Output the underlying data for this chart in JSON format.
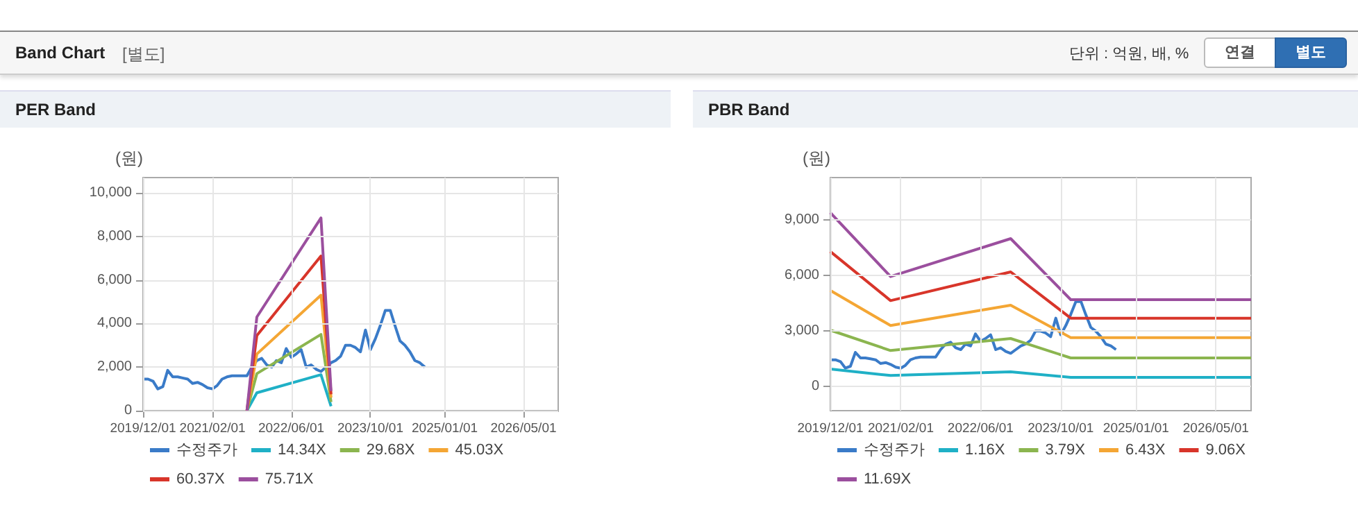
{
  "chart_data": [
    {
      "type": "other",
      "title": "Band Chart",
      "subtitle": "[별도]",
      "annotations": [
        "단위 : 억원, 배, %",
        "연결",
        "별도"
      ]
    },
    {
      "type": "line",
      "title": "PER Band",
      "ylabel": "(원)",
      "xlim": [
        "2019-12-01",
        "2026-12-01"
      ],
      "xticks": [
        {
          "value": "2019-12-01",
          "label": "2019/12/01"
        },
        {
          "value": "2021-02-01",
          "label": "2021/02/01"
        },
        {
          "value": "2022-06-01",
          "label": "2022/06/01"
        },
        {
          "value": "2023-10-01",
          "label": "2023/10/01"
        },
        {
          "value": "2025-01-01",
          "label": "2025/01/01"
        },
        {
          "value": "2026-05-01",
          "label": "2026/05/01"
        }
      ],
      "ylim": [
        0,
        10700
      ],
      "yticks": [
        0,
        {
          "value": 2000,
          "label": "2,000"
        },
        {
          "value": 4000,
          "label": "4,000"
        },
        {
          "value": 6000,
          "label": "6,000"
        },
        {
          "value": 8000,
          "label": "8,000"
        },
        {
          "value": 10000,
          "label": "10,000"
        }
      ],
      "grid": true,
      "legend": "bottom",
      "marker": "none",
      "line_style": "solid",
      "series": [
        {
          "name": "수정주가",
          "color": "#3a7bc8",
          "x": [
            "2019-12-01",
            "2020-01-01",
            "2020-02-01",
            "2020-03-01",
            "2020-04-01",
            "2020-05-01",
            "2020-06-01",
            "2020-07-01",
            "2020-08-01",
            "2020-09-01",
            "2020-10-01",
            "2020-11-01",
            "2020-12-01",
            "2021-01-01",
            "2021-02-01",
            "2021-03-01",
            "2021-04-01",
            "2021-05-01",
            "2021-06-01",
            "2021-07-01",
            "2021-08-01",
            "2021-09-01",
            "2021-10-01",
            "2021-11-01",
            "2021-12-01",
            "2022-01-01",
            "2022-02-01",
            "2022-03-01",
            "2022-04-01",
            "2022-05-01",
            "2022-06-01",
            "2022-07-01",
            "2022-08-01",
            "2022-09-01",
            "2022-10-01",
            "2022-11-01",
            "2022-12-01",
            "2023-01-01",
            "2023-02-01",
            "2023-03-01",
            "2023-04-01",
            "2023-05-01",
            "2023-06-01",
            "2023-07-01",
            "2023-08-01",
            "2023-09-01",
            "2023-10-01",
            "2023-11-01",
            "2023-12-01",
            "2024-01-01",
            "2024-02-01",
            "2024-03-01",
            "2024-04-01",
            "2024-05-01",
            "2024-06-01",
            "2024-07-01",
            "2024-08-01",
            "2024-09-01"
          ],
          "values": [
            1450,
            1450,
            1350,
            1000,
            1100,
            1850,
            1550,
            1550,
            1500,
            1450,
            1250,
            1300,
            1200,
            1050,
            1000,
            1150,
            1450,
            1550,
            1600,
            1600,
            1600,
            1600,
            2000,
            2300,
            2400,
            2100,
            2000,
            2300,
            2200,
            2850,
            2450,
            2600,
            2800,
            2000,
            2100,
            1900,
            1800,
            2000,
            2200,
            2300,
            2500,
            3000,
            3000,
            2900,
            2700,
            3700,
            2800,
            3300,
            3900,
            4600,
            4600,
            3900,
            3200,
            3000,
            2700,
            2300,
            2200,
            2000
          ]
        },
        {
          "name": "14.34X",
          "color": "#1fb0c6",
          "x": [
            "2021-09-01",
            "2021-11-01",
            "2022-12-01",
            "2023-02-01"
          ],
          "values": [
            0,
            820,
            1650,
            200
          ]
        },
        {
          "name": "29.68X",
          "color": "#8bb54f",
          "x": [
            "2021-09-01",
            "2021-11-01",
            "2022-12-01",
            "2023-02-01"
          ],
          "values": [
            0,
            1700,
            3500,
            400
          ]
        },
        {
          "name": "45.03X",
          "color": "#f4a634",
          "x": [
            "2021-09-01",
            "2021-11-01",
            "2022-12-01",
            "2023-02-01"
          ],
          "values": [
            0,
            2600,
            5300,
            600
          ]
        },
        {
          "name": "60.37X",
          "color": "#d8352a",
          "x": [
            "2021-09-01",
            "2021-11-01",
            "2022-12-01",
            "2023-02-01"
          ],
          "values": [
            0,
            3450,
            7100,
            750
          ]
        },
        {
          "name": "75.71X",
          "color": "#9b4f9e",
          "x": [
            "2021-09-01",
            "2021-11-01",
            "2022-12-01",
            "2023-02-01"
          ],
          "values": [
            0,
            4300,
            8850,
            900
          ]
        }
      ]
    },
    {
      "type": "line",
      "title": "PBR Band",
      "ylabel": "(원)",
      "xlim": [
        "2019-12-01",
        "2026-12-01"
      ],
      "xticks": [
        {
          "value": "2019-12-01",
          "label": "2019/12/01"
        },
        {
          "value": "2021-02-01",
          "label": "2021/02/01"
        },
        {
          "value": "2022-06-01",
          "label": "2022/06/01"
        },
        {
          "value": "2023-10-01",
          "label": "2023/10/01"
        },
        {
          "value": "2025-01-01",
          "label": "2025/01/01"
        },
        {
          "value": "2026-05-01",
          "label": "2026/05/01"
        }
      ],
      "ylim": [
        -1300,
        11300
      ],
      "yticks": [
        0,
        {
          "value": 3000,
          "label": "3,000"
        },
        {
          "value": 6000,
          "label": "6,000"
        },
        {
          "value": 9000,
          "label": "9,000"
        }
      ],
      "grid": true,
      "legend": "bottom",
      "marker": "none",
      "line_style": "solid",
      "series": [
        {
          "name": "수정주가",
          "color": "#3a7bc8",
          "x": [
            "2019-12-01",
            "2020-01-01",
            "2020-02-01",
            "2020-03-01",
            "2020-04-01",
            "2020-05-01",
            "2020-06-01",
            "2020-07-01",
            "2020-08-01",
            "2020-09-01",
            "2020-10-01",
            "2020-11-01",
            "2020-12-01",
            "2021-01-01",
            "2021-02-01",
            "2021-03-01",
            "2021-04-01",
            "2021-05-01",
            "2021-06-01",
            "2021-07-01",
            "2021-08-01",
            "2021-09-01",
            "2021-10-01",
            "2021-11-01",
            "2021-12-01",
            "2022-01-01",
            "2022-02-01",
            "2022-03-01",
            "2022-04-01",
            "2022-05-01",
            "2022-06-01",
            "2022-07-01",
            "2022-08-01",
            "2022-09-01",
            "2022-10-01",
            "2022-11-01",
            "2022-12-01",
            "2023-01-01",
            "2023-02-01",
            "2023-03-01",
            "2023-04-01",
            "2023-05-01",
            "2023-06-01",
            "2023-07-01",
            "2023-08-01",
            "2023-09-01",
            "2023-10-01",
            "2023-11-01",
            "2023-12-01",
            "2024-01-01",
            "2024-02-01",
            "2024-03-01",
            "2024-04-01",
            "2024-05-01",
            "2024-06-01",
            "2024-07-01",
            "2024-08-01",
            "2024-09-01"
          ],
          "values": [
            1450,
            1450,
            1350,
            1000,
            1100,
            1850,
            1550,
            1550,
            1500,
            1450,
            1250,
            1300,
            1200,
            1050,
            1000,
            1150,
            1450,
            1550,
            1600,
            1600,
            1600,
            1600,
            2000,
            2300,
            2400,
            2100,
            2000,
            2300,
            2200,
            2850,
            2450,
            2600,
            2800,
            2000,
            2100,
            1900,
            1800,
            2000,
            2200,
            2300,
            2500,
            3000,
            3000,
            2900,
            2700,
            3700,
            2800,
            3300,
            3900,
            4600,
            4600,
            3900,
            3200,
            3000,
            2700,
            2300,
            2200,
            2000
          ]
        },
        {
          "name": "1.16X",
          "color": "#1fb0c6",
          "x": [
            "2019-12-01",
            "2020-12-01",
            "2022-12-01",
            "2023-12-01",
            "2026-12-01"
          ],
          "values": [
            950,
            600,
            800,
            500,
            500
          ]
        },
        {
          "name": "3.79X",
          "color": "#8bb54f",
          "x": [
            "2019-12-01",
            "2020-12-01",
            "2022-12-01",
            "2023-12-01",
            "2026-12-01"
          ],
          "values": [
            3050,
            1950,
            2600,
            1550,
            1550
          ]
        },
        {
          "name": "6.43X",
          "color": "#f4a634",
          "x": [
            "2019-12-01",
            "2020-12-01",
            "2022-12-01",
            "2023-12-01",
            "2026-12-01"
          ],
          "values": [
            5200,
            3300,
            4400,
            2650,
            2650
          ]
        },
        {
          "name": "9.06X",
          "color": "#d8352a",
          "x": [
            "2019-12-01",
            "2020-12-01",
            "2022-12-01",
            "2023-12-01",
            "2026-12-01"
          ],
          "values": [
            7300,
            4650,
            6200,
            3700,
            3700
          ]
        },
        {
          "name": "11.69X",
          "color": "#9b4f9e",
          "x": [
            "2019-12-01",
            "2020-12-01",
            "2022-12-01",
            "2023-12-01",
            "2026-12-01"
          ],
          "values": [
            9400,
            5950,
            8000,
            4700,
            4700
          ]
        }
      ]
    }
  ]
}
